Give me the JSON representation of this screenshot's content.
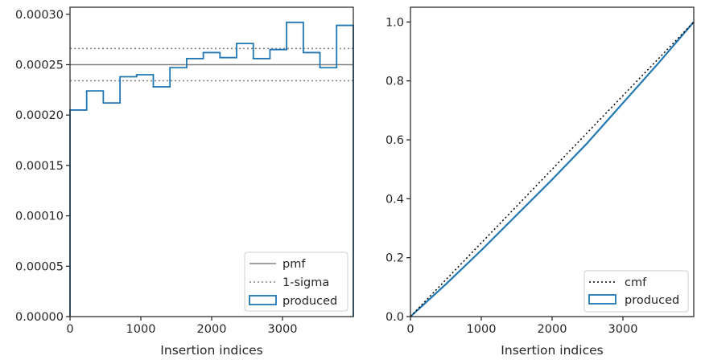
{
  "chart_data": [
    {
      "type": "histogram-step",
      "xlabel": "Insertion indices",
      "ylabel": "",
      "xlim": [
        0,
        4000
      ],
      "ylim": [
        0,
        0.000307
      ],
      "xticks": [
        0,
        1000,
        2000,
        3000
      ],
      "xtick_labels": [
        "0",
        "1000",
        "2000",
        "3000"
      ],
      "yticks": [
        0,
        5e-05,
        0.0001,
        0.00015,
        0.0002,
        0.00025,
        0.0003
      ],
      "ytick_labels": [
        "0.00000",
        "0.00005",
        "0.00010",
        "0.00015",
        "0.00020",
        "0.00025",
        "0.00030"
      ],
      "bin_edges": [
        0,
        235,
        470,
        706,
        941,
        1176,
        1411,
        1647,
        1882,
        2117,
        2352,
        2588,
        2823,
        3058,
        3294,
        3529,
        3764,
        4000
      ],
      "produced": [
        0.000205,
        0.000224,
        0.000212,
        0.000238,
        0.00024,
        0.000228,
        0.000247,
        0.000256,
        0.000262,
        0.000257,
        0.000271,
        0.000256,
        0.000265,
        0.000292,
        0.000262,
        0.000247,
        0.000289
      ],
      "pmf": 0.00025,
      "sigma_band": [
        0.000234,
        0.000266
      ],
      "legend": {
        "position": "lower right",
        "entries": [
          {
            "label": "pmf",
            "style": "solid",
            "color": "#808080"
          },
          {
            "label": "1-sigma",
            "style": "dotted",
            "color": "#808080"
          },
          {
            "label": "produced",
            "style": "patch",
            "color": "#1f77b4"
          }
        ]
      }
    },
    {
      "type": "cumulative-step",
      "xlabel": "Insertion indices",
      "ylabel": "",
      "xlim": [
        0,
        4000
      ],
      "ylim": [
        0,
        1.05
      ],
      "xticks": [
        0,
        1000,
        2000,
        3000
      ],
      "xtick_labels": [
        "0",
        "1000",
        "2000",
        "3000"
      ],
      "yticks": [
        0,
        0.2,
        0.4,
        0.6,
        0.8,
        1.0
      ],
      "ytick_labels": [
        "0.0",
        "0.2",
        "0.4",
        "0.6",
        "0.8",
        "1.0"
      ],
      "cmf": {
        "x": [
          0,
          4000
        ],
        "y": [
          0,
          1.0
        ]
      },
      "produced": {
        "x": [
          0,
          500,
          1000,
          1500,
          2000,
          2500,
          3000,
          3500,
          4000
        ],
        "y": [
          0,
          0.11,
          0.225,
          0.345,
          0.465,
          0.59,
          0.725,
          0.86,
          1.0
        ]
      },
      "legend": {
        "position": "lower right",
        "entries": [
          {
            "label": "cmf",
            "style": "dotted",
            "color": "#000000"
          },
          {
            "label": "produced",
            "style": "patch",
            "color": "#1f77b4"
          }
        ]
      }
    }
  ],
  "colors": {
    "produced": "#1f77b4",
    "reference": "#808080",
    "cmf": "#000000",
    "axes": "#262626"
  }
}
